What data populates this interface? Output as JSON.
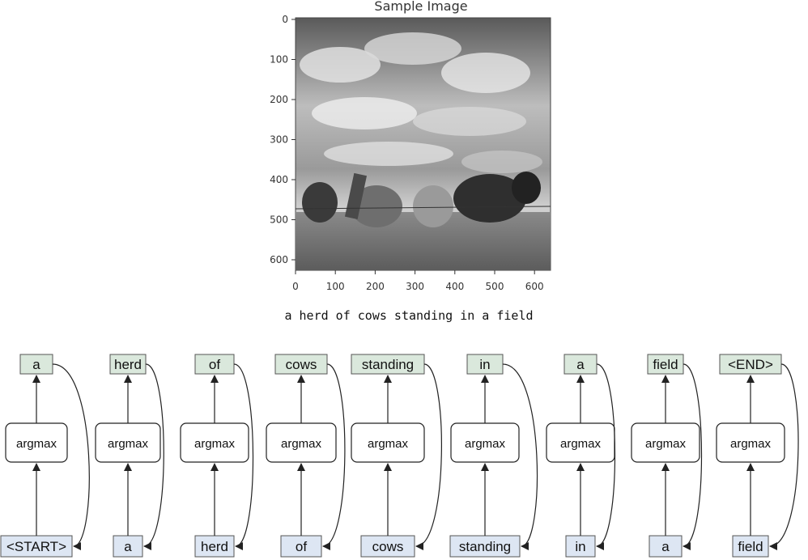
{
  "plot": {
    "title": "Sample Image",
    "y_ticks": [
      "0",
      "100",
      "200",
      "300",
      "400",
      "500",
      "600"
    ],
    "x_ticks": [
      "0",
      "100",
      "200",
      "300",
      "400",
      "500",
      "600"
    ]
  },
  "caption": "a herd of cows standing in a field",
  "decoder": {
    "op_label": "argmax",
    "steps": [
      {
        "input": "<START>",
        "output": "a"
      },
      {
        "input": "a",
        "output": "herd"
      },
      {
        "input": "herd",
        "output": "of"
      },
      {
        "input": "of",
        "output": "cows"
      },
      {
        "input": "cows",
        "output": "standing"
      },
      {
        "input": "standing",
        "output": "in"
      },
      {
        "input": "in",
        "output": "a"
      },
      {
        "input": "a",
        "output": "field"
      },
      {
        "input": "field",
        "output": "<END>"
      }
    ]
  },
  "colors": {
    "output_fill": "#dae8dc",
    "input_fill": "#dde6f3",
    "box_stroke": "#555555",
    "arrow": "#222222"
  }
}
